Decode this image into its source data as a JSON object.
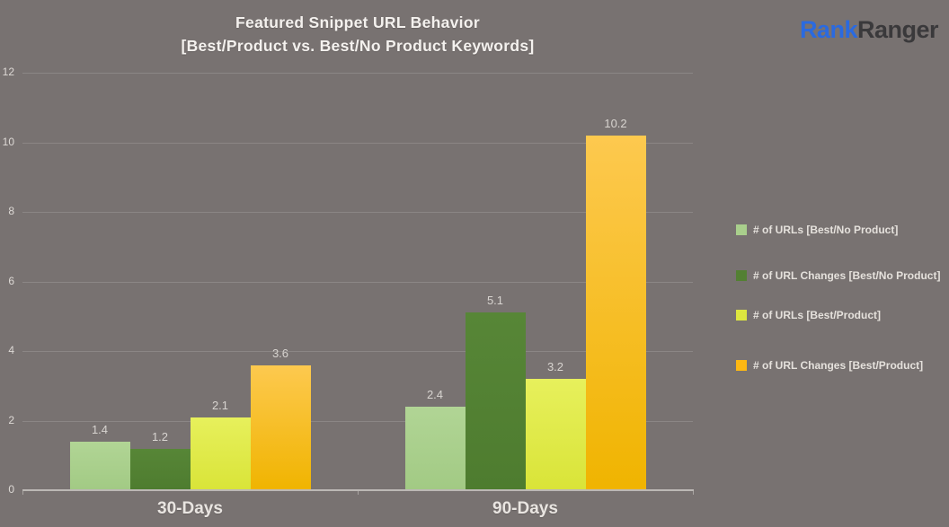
{
  "title": {
    "line1": "Featured Snippet URL Behavior",
    "line2": "[Best/Product vs. Best/No Product Keywords]"
  },
  "logo": {
    "part1": "Rank",
    "part2": "Ranger",
    "part1_color": "#2a6ae0",
    "part2_color": "#3a393b"
  },
  "colors": {
    "background": "#787271",
    "gridline": "#8b8685",
    "axis_line": "#bcb8b5",
    "title_text": "#f4f1ee",
    "data_label_text": "#d8d4d0",
    "legend_text": "#e5e1dc"
  },
  "chart_data": {
    "type": "bar",
    "title": "Featured Snippet URL Behavior [Best/Product vs. Best/No Product Keywords]",
    "categories": [
      "30-Days",
      "90-Days"
    ],
    "series": [
      {
        "name": "# of URLs [Best/No Product]",
        "values": [
          1.4,
          2.4
        ],
        "color": "#a9cf8c",
        "color_top": "#b1d595",
        "color_bottom": "#a2ca84"
      },
      {
        "name": "# of URL Changes [Best/No Product]",
        "values": [
          1.2,
          5.1
        ],
        "color": "#538033",
        "color_top": "#578637",
        "color_bottom": "#4e7c2f"
      },
      {
        "name": "# of URLs [Best/Product]",
        "values": [
          2.1,
          3.2
        ],
        "color": "#dde63f",
        "color_top": "#e7f05c",
        "color_bottom": "#d9e438"
      },
      {
        "name": "# of URL Changes [Best/Product]",
        "values": [
          3.6,
          10.2
        ],
        "color": "#fdb813",
        "color_top": "#fdc94f",
        "color_bottom": "#f0b400"
      }
    ],
    "xlabel": "",
    "ylabel": "",
    "ylim": [
      0,
      12
    ],
    "yticks": [
      0,
      2,
      4,
      6,
      8,
      10,
      12
    ],
    "grid": true,
    "legend_position": "right",
    "value_labels": true,
    "value_label_format": "0.0"
  }
}
